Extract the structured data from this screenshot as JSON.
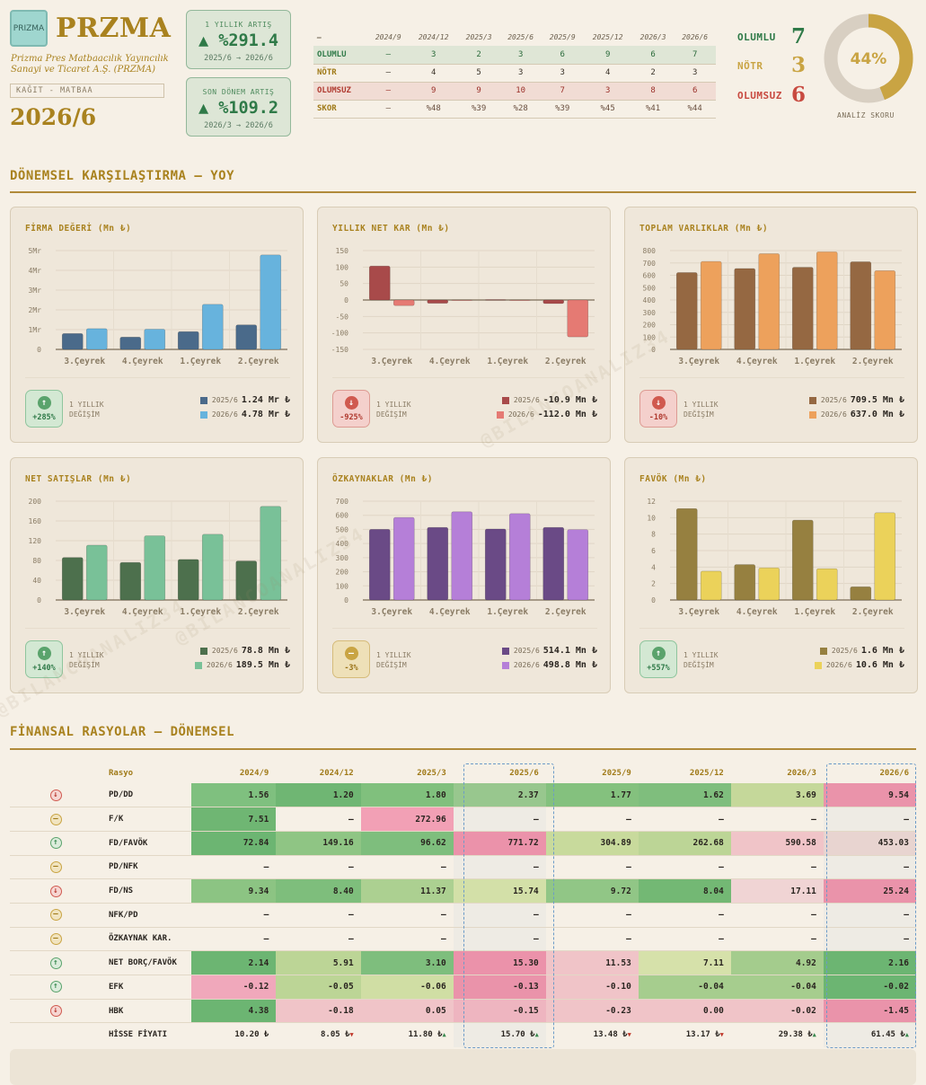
{
  "header": {
    "logo_text": "PRIZMA",
    "ticker": "PRZMA",
    "company": "Prizma Pres Matbaacılık Yayıncılık Sanayi ve Ticaret A.Ş. (PRZMA)",
    "sector": "KAĞIT - MATBAA",
    "period": "2026/6"
  },
  "kpis": [
    {
      "label": "1 YILLIK ARTIŞ",
      "value": "▲ %291.4",
      "range": "2025/6 → 2026/6"
    },
    {
      "label": "SON DÖNEM ARTIŞ",
      "value": "▲ %109.2",
      "range": "2026/3 → 2026/6"
    }
  ],
  "summary": {
    "headers": [
      "—",
      "2024/9",
      "2024/12",
      "2025/3",
      "2025/6",
      "2025/9",
      "2025/12",
      "2026/3",
      "2026/6"
    ],
    "rows": [
      {
        "cls": "olumlu",
        "cells": [
          "OLUMLU",
          "—",
          "3",
          "2",
          "3",
          "6",
          "9",
          "6",
          "7"
        ]
      },
      {
        "cls": "notr",
        "cells": [
          "NÖTR",
          "—",
          "4",
          "5",
          "3",
          "3",
          "4",
          "2",
          "3"
        ]
      },
      {
        "cls": "olumsuz",
        "cells": [
          "OLUMSUZ",
          "—",
          "9",
          "9",
          "10",
          "7",
          "3",
          "8",
          "6"
        ]
      },
      {
        "cls": "skor",
        "cells": [
          "SKOR",
          "—",
          "%48",
          "%39",
          "%28",
          "%39",
          "%45",
          "%41",
          "%44"
        ]
      }
    ]
  },
  "counts": {
    "olumlu_label": "OLUMLU",
    "olumlu": "7",
    "notr_label": "NÖTR",
    "notr": "3",
    "olumsuz_label": "OLUMSUZ",
    "olumsuz": "6"
  },
  "score": {
    "value": "44%",
    "fraction": 0.44,
    "label": "ANALİZ SKORU"
  },
  "sections": {
    "yoy": "DÖNEMSEL KARŞILAŞTIRMA — YOY",
    "ratios": "FİNANSAL RASYOLAR — DÖNEMSEL"
  },
  "watermark": "@BILANCOANALIZ34",
  "chart_data": [
    {
      "type": "bar",
      "title": "FİRMA DEĞERİ (Mn ₺)",
      "categories": [
        "3.Çeyrek",
        "4.Çeyrek",
        "1.Çeyrek",
        "2.Çeyrek"
      ],
      "yticks": [
        0,
        1,
        2,
        3,
        4,
        5
      ],
      "ytick_labels": [
        "0",
        "1Mr",
        "2Mr",
        "3Mr",
        "4Mr",
        "5Mr"
      ],
      "ylim": [
        0,
        5
      ],
      "series": [
        {
          "name": "2025/6",
          "color": "#4a6a8a",
          "values": [
            0.8,
            0.62,
            0.9,
            1.24
          ]
        },
        {
          "name": "2026/6",
          "color": "#67b3dd",
          "values": [
            1.05,
            1.02,
            2.28,
            4.78
          ]
        }
      ],
      "change": {
        "dir": "up",
        "pct": "+285%",
        "label1": "1 YILLIK",
        "label2": "DEĞİŞİM"
      },
      "legend": [
        {
          "year": "2025/6",
          "value": "1.24 Mr ₺"
        },
        {
          "year": "2026/6",
          "value": "4.78 Mr ₺"
        }
      ]
    },
    {
      "type": "bar",
      "title": "YILLIK NET KAR (Mn ₺)",
      "categories": [
        "3.Çeyrek",
        "4.Çeyrek",
        "1.Çeyrek",
        "2.Çeyrek"
      ],
      "yticks": [
        -150,
        -100,
        -50,
        0,
        50,
        100,
        150
      ],
      "ytick_labels": [
        "-150",
        "-100",
        "-50",
        "0",
        "50",
        "100",
        "150"
      ],
      "ylim": [
        -150,
        150
      ],
      "series": [
        {
          "name": "2025/6",
          "color": "#a84a4a",
          "values": [
            103,
            -10,
            1,
            -10.9
          ]
        },
        {
          "name": "2026/6",
          "color": "#e57a73",
          "values": [
            -17,
            0,
            0,
            -112
          ]
        }
      ],
      "change": {
        "dir": "down",
        "pct": "-925%",
        "label1": "1 YILLIK",
        "label2": "DEĞİŞİM"
      },
      "legend": [
        {
          "year": "2025/6",
          "value": "-10.9 Mn ₺"
        },
        {
          "year": "2026/6",
          "value": "-112.0 Mn ₺"
        }
      ]
    },
    {
      "type": "bar",
      "title": "TOPLAM VARLIKLAR (Mn ₺)",
      "categories": [
        "3.Çeyrek",
        "4.Çeyrek",
        "1.Çeyrek",
        "2.Çeyrek"
      ],
      "yticks": [
        0,
        100,
        200,
        300,
        400,
        500,
        600,
        700,
        800
      ],
      "ytick_labels": [
        "0",
        "100",
        "200",
        "300",
        "400",
        "500",
        "600",
        "700",
        "800"
      ],
      "ylim": [
        0,
        800
      ],
      "series": [
        {
          "name": "2025/6",
          "color": "#956842",
          "values": [
            622,
            655,
            665,
            709.5
          ]
        },
        {
          "name": "2026/6",
          "color": "#eda15c",
          "values": [
            712,
            775,
            790,
            637
          ]
        }
      ],
      "change": {
        "dir": "down",
        "pct": "-10%",
        "label1": "1 YILLIK",
        "label2": "DEĞİŞİM"
      },
      "legend": [
        {
          "year": "2025/6",
          "value": "709.5 Mn ₺"
        },
        {
          "year": "2026/6",
          "value": "637.0 Mn ₺"
        }
      ]
    },
    {
      "type": "bar",
      "title": "NET SATIŞLAR (Mn ₺)",
      "categories": [
        "3.Çeyrek",
        "4.Çeyrek",
        "1.Çeyrek",
        "2.Çeyrek"
      ],
      "yticks": [
        0,
        40,
        80,
        120,
        160,
        200
      ],
      "ytick_labels": [
        "0",
        "40",
        "80",
        "120",
        "160",
        "200"
      ],
      "ylim": [
        0,
        200
      ],
      "series": [
        {
          "name": "2025/6",
          "color": "#4d704d",
          "values": [
            86,
            76,
            82,
            78.8
          ]
        },
        {
          "name": "2026/6",
          "color": "#79c198",
          "values": [
            111,
            130,
            133,
            189.5
          ]
        }
      ],
      "change": {
        "dir": "up",
        "pct": "+140%",
        "label1": "1 YILLIK",
        "label2": "DEĞİŞİM"
      },
      "legend": [
        {
          "year": "2025/6",
          "value": "78.8 Mn ₺"
        },
        {
          "year": "2026/6",
          "value": "189.5 Mn ₺"
        }
      ]
    },
    {
      "type": "bar",
      "title": "ÖZKAYNAKLAR (Mn ₺)",
      "categories": [
        "3.Çeyrek",
        "4.Çeyrek",
        "1.Çeyrek",
        "2.Çeyrek"
      ],
      "yticks": [
        0,
        100,
        200,
        300,
        400,
        500,
        600,
        700
      ],
      "ytick_labels": [
        "0",
        "100",
        "200",
        "300",
        "400",
        "500",
        "600",
        "700"
      ],
      "ylim": [
        0,
        700
      ],
      "series": [
        {
          "name": "2025/6",
          "color": "#6a4a86",
          "values": [
            500,
            514,
            503,
            514.1
          ]
        },
        {
          "name": "2026/6",
          "color": "#b57fd8",
          "values": [
            585,
            625,
            612,
            498.8
          ]
        }
      ],
      "change": {
        "dir": "flat",
        "pct": "-3%",
        "label1": "1 YILLIK",
        "label2": "DEĞİŞİM"
      },
      "legend": [
        {
          "year": "2025/6",
          "value": "514.1 Mn ₺"
        },
        {
          "year": "2026/6",
          "value": "498.8 Mn ₺"
        }
      ]
    },
    {
      "type": "bar",
      "title": "FAVÖK (Mn ₺)",
      "categories": [
        "3.Çeyrek",
        "4.Çeyrek",
        "1.Çeyrek",
        "2.Çeyrek"
      ],
      "yticks": [
        0,
        2,
        4,
        6,
        8,
        10,
        12
      ],
      "ytick_labels": [
        "0",
        "2",
        "4",
        "6",
        "8",
        "10",
        "12"
      ],
      "ylim": [
        0,
        12
      ],
      "series": [
        {
          "name": "2025/6",
          "color": "#968040",
          "values": [
            11.1,
            4.3,
            9.7,
            1.6
          ]
        },
        {
          "name": "2026/6",
          "color": "#ebd25a",
          "values": [
            3.5,
            3.9,
            3.8,
            10.6
          ]
        }
      ],
      "change": {
        "dir": "up",
        "pct": "+557%",
        "label1": "1 YILLIK",
        "label2": "DEĞİŞİM"
      },
      "legend": [
        {
          "year": "2025/6",
          "value": "1.6 Mn ₺"
        },
        {
          "year": "2026/6",
          "value": "10.6 Mn ₺"
        }
      ]
    }
  ],
  "ratios": {
    "col_label": "Rasyo",
    "periods": [
      "2024/9",
      "2024/12",
      "2025/3",
      "2025/6",
      "2025/9",
      "2025/12",
      "2026/3",
      "2026/6"
    ],
    "rows": [
      {
        "name": "PD/DD",
        "dir": "down",
        "values": [
          "1.56",
          "1.20",
          "1.80",
          "2.37",
          "1.77",
          "1.62",
          "3.69",
          "9.54"
        ],
        "colors": [
          "#7fc07f",
          "#6fb673",
          "#80c07d",
          "#98c78e",
          "#84c17e",
          "#7fbe7d",
          "#c5d89a",
          "#ea93aa"
        ]
      },
      {
        "name": "F/K",
        "dir": "flat",
        "values": [
          "7.51",
          "—",
          "272.96",
          "—",
          "—",
          "—",
          "—",
          "—"
        ],
        "colors": [
          "#6fb673",
          "",
          "#f2a0b5",
          "",
          "",
          "",
          "",
          ""
        ]
      },
      {
        "name": "FD/FAVÖK",
        "dir": "up",
        "values": [
          "72.84",
          "149.16",
          "96.62",
          "771.72",
          "304.89",
          "262.68",
          "590.58",
          "453.03"
        ],
        "colors": [
          "#6cb572",
          "#8fc584",
          "#7ebe7d",
          "#eb92aa",
          "#c8da9c",
          "#bcd596",
          "#f0c4c8",
          "#e8d4d0"
        ]
      },
      {
        "name": "PD/NFK",
        "dir": "flat",
        "values": [
          "—",
          "—",
          "—",
          "—",
          "—",
          "—",
          "—",
          "—"
        ],
        "colors": [
          "",
          "",
          "",
          "",
          "",
          "",
          "",
          ""
        ]
      },
      {
        "name": "FD/NS",
        "dir": "down",
        "values": [
          "9.34",
          "8.40",
          "11.37",
          "15.74",
          "9.72",
          "8.04",
          "17.11",
          "25.24"
        ],
        "colors": [
          "#8cc483",
          "#7ebe7c",
          "#acd091",
          "#d3e0a8",
          "#91c686",
          "#73b874",
          "#f0d4d4",
          "#ea93aa"
        ]
      },
      {
        "name": "NFK/PD",
        "dir": "flat",
        "values": [
          "—",
          "—",
          "—",
          "—",
          "—",
          "—",
          "—",
          "—"
        ],
        "colors": [
          "",
          "",
          "",
          "",
          "",
          "",
          "",
          ""
        ]
      },
      {
        "name": "ÖZKAYNAK KAR.",
        "dir": "flat",
        "values": [
          "—",
          "—",
          "—",
          "—",
          "—",
          "—",
          "—",
          "—"
        ],
        "colors": [
          "",
          "",
          "",
          "",
          "",
          "",
          "",
          ""
        ]
      },
      {
        "name": "NET BORÇ/FAVÖK",
        "dir": "up",
        "values": [
          "2.14",
          "5.91",
          "3.10",
          "15.30",
          "11.53",
          "7.11",
          "4.92",
          "2.16"
        ],
        "colors": [
          "#6cb572",
          "#bcd596",
          "#7ebe7d",
          "#eb92aa",
          "#f0c4c8",
          "#d6e1aa",
          "#a4cc8d",
          "#6cb572"
        ]
      },
      {
        "name": "EFK",
        "dir": "up",
        "values": [
          "-0.12",
          "-0.05",
          "-0.06",
          "-0.13",
          "-0.10",
          "-0.04",
          "-0.04",
          "-0.02"
        ],
        "colors": [
          "#f0a8bb",
          "#bcd596",
          "#d0dea4",
          "#ea93aa",
          "#f0c4c8",
          "#a6cd8e",
          "#a6cd8e",
          "#6cb572"
        ]
      },
      {
        "name": "HBK",
        "dir": "down",
        "values": [
          "4.38",
          "-0.18",
          "0.05",
          "-0.15",
          "-0.23",
          "0.00",
          "-0.02",
          "-1.45"
        ],
        "colors": [
          "#6cb572",
          "#f0c4c8",
          "#f0c4c8",
          "#eeb5c0",
          "#f0c4c8",
          "#f0c4c8",
          "#f0c4c8",
          "#ea93aa"
        ]
      }
    ],
    "price": {
      "name": "HİSSE FİYATI",
      "values": [
        "10.20 ₺",
        "8.05 ₺",
        "11.80 ₺",
        "15.70 ₺",
        "13.48 ₺",
        "13.17 ₺",
        "29.38 ₺",
        "61.45 ₺"
      ],
      "trend": [
        "",
        "down",
        "up",
        "up",
        "down",
        "down",
        "up",
        "up"
      ]
    }
  }
}
